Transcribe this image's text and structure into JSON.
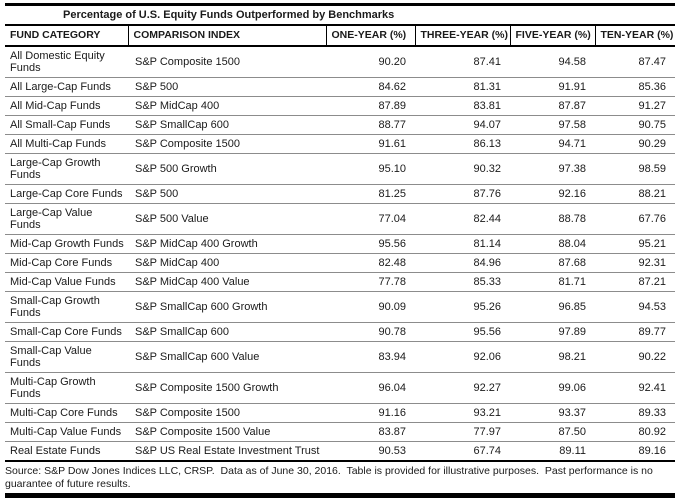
{
  "title": "Percentage of U.S. Equity Funds Outperformed by Benchmarks",
  "table": {
    "columns": [
      "FUND CATEGORY",
      "COMPARISON INDEX",
      "ONE-YEAR (%)",
      "THREE-YEAR (%)",
      "FIVE-YEAR (%)",
      "TEN-YEAR (%)"
    ],
    "rows": [
      {
        "category": "All Domestic Equity Funds",
        "index": "S&P Composite 1500",
        "one_year": "90.20",
        "three_year": "87.41",
        "five_year": "94.58",
        "ten_year": "87.47"
      },
      {
        "category": "All Large-Cap Funds",
        "index": "S&P 500",
        "one_year": "84.62",
        "three_year": "81.31",
        "five_year": "91.91",
        "ten_year": "85.36"
      },
      {
        "category": "All Mid-Cap Funds",
        "index": "S&P MidCap 400",
        "one_year": "87.89",
        "three_year": "83.81",
        "five_year": "87.87",
        "ten_year": "91.27"
      },
      {
        "category": "All Small-Cap Funds",
        "index": "S&P SmallCap 600",
        "one_year": "88.77",
        "three_year": "94.07",
        "five_year": "97.58",
        "ten_year": "90.75"
      },
      {
        "category": "All Multi-Cap Funds",
        "index": "S&P Composite 1500",
        "one_year": "91.61",
        "three_year": "86.13",
        "five_year": "94.71",
        "ten_year": "90.29"
      },
      {
        "category": "Large-Cap Growth Funds",
        "index": "S&P 500 Growth",
        "one_year": "95.10",
        "three_year": "90.32",
        "five_year": "97.38",
        "ten_year": "98.59"
      },
      {
        "category": "Large-Cap Core Funds",
        "index": "S&P 500",
        "one_year": "81.25",
        "three_year": "87.76",
        "five_year": "92.16",
        "ten_year": "88.21"
      },
      {
        "category": "Large-Cap Value Funds",
        "index": "S&P 500 Value",
        "one_year": "77.04",
        "three_year": "82.44",
        "five_year": "88.78",
        "ten_year": "67.76"
      },
      {
        "category": "Mid-Cap Growth Funds",
        "index": "S&P MidCap 400 Growth",
        "one_year": "95.56",
        "three_year": "81.14",
        "five_year": "88.04",
        "ten_year": "95.21"
      },
      {
        "category": "Mid-Cap Core Funds",
        "index": "S&P MidCap 400",
        "one_year": "82.48",
        "three_year": "84.96",
        "five_year": "87.68",
        "ten_year": "92.31"
      },
      {
        "category": "Mid-Cap Value Funds",
        "index": "S&P MidCap 400 Value",
        "one_year": "77.78",
        "three_year": "85.33",
        "five_year": "81.71",
        "ten_year": "87.21"
      },
      {
        "category": "Small-Cap Growth Funds",
        "index": "S&P SmallCap 600 Growth",
        "one_year": "90.09",
        "three_year": "95.26",
        "five_year": "96.85",
        "ten_year": "94.53"
      },
      {
        "category": "Small-Cap Core Funds",
        "index": "S&P SmallCap 600",
        "one_year": "90.78",
        "three_year": "95.56",
        "five_year": "97.89",
        "ten_year": "89.77"
      },
      {
        "category": "Small-Cap Value Funds",
        "index": "S&P SmallCap 600 Value",
        "one_year": "83.94",
        "three_year": "92.06",
        "five_year": "98.21",
        "ten_year": "90.22"
      },
      {
        "category": "Multi-Cap Growth Funds",
        "index": "S&P Composite 1500 Growth",
        "one_year": "96.04",
        "three_year": "92.27",
        "five_year": "99.06",
        "ten_year": "92.41"
      },
      {
        "category": "Multi-Cap Core Funds",
        "index": "S&P Composite 1500",
        "one_year": "91.16",
        "three_year": "93.21",
        "five_year": "93.37",
        "ten_year": "89.33"
      },
      {
        "category": "Multi-Cap Value Funds",
        "index": "S&P Composite 1500 Value",
        "one_year": "83.87",
        "three_year": "77.97",
        "five_year": "87.50",
        "ten_year": "80.92"
      },
      {
        "category": "Real Estate Funds",
        "index": "S&P US Real Estate Investment Trust",
        "one_year": "90.53",
        "three_year": "67.74",
        "five_year": "89.11",
        "ten_year": "89.16"
      }
    ]
  },
  "footnote": "Source: S&P Dow Jones Indices LLC, CRSP.  Data as of June 30, 2016.  Table is provided for illustrative purposes.  Past performance is no guarantee of future results.",
  "colors": {
    "rule": "#000000",
    "row_divider": "#8c8c8c",
    "text": "#1a1a1a",
    "background": "#ffffff"
  }
}
